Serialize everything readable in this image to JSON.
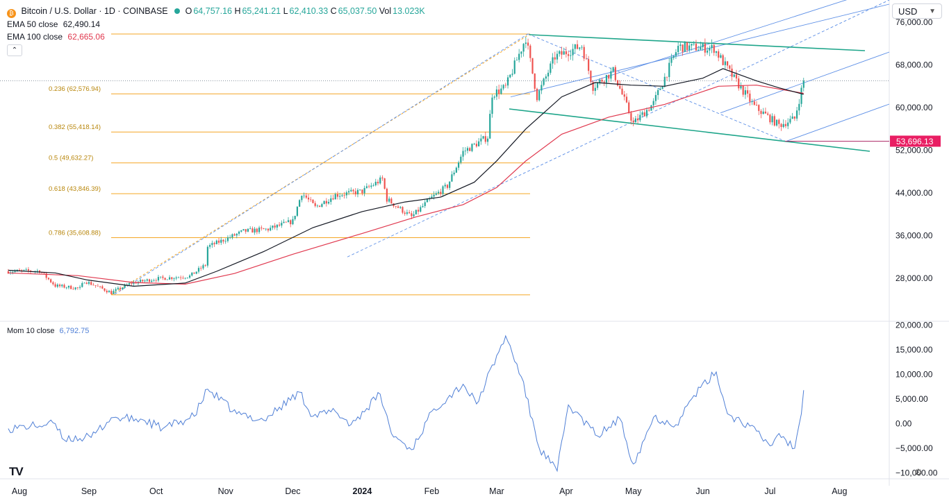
{
  "header": {
    "symbol": "Bitcoin / U.S. Dollar · 1D · COINBASE",
    "o_label": "O",
    "o_value": "64,757.16",
    "h_label": "H",
    "h_value": "65,241.21",
    "l_label": "L",
    "l_value": "62,410.33",
    "c_label": "C",
    "c_value": "65,037.50",
    "vol_label": "Vol",
    "vol_value": "13.023K",
    "coin_icon": "bitcoin-icon",
    "market_dot_color": "#26a69a"
  },
  "indicators": {
    "ema50_label": "EMA 50 close",
    "ema50_value": "62,490.14",
    "ema100_label": "EMA 100 close",
    "ema100_value": "62,665.06",
    "collapse_icon": "chevron-up-icon",
    "mom_label": "Mom 10 close",
    "mom_value": "6,792.75"
  },
  "currency": {
    "value": "USD",
    "icon": "chevron-down-icon"
  },
  "footer": {
    "logo": "TV",
    "settings_icon": "gear-icon"
  },
  "colors": {
    "up": "#26a69a",
    "down": "#ef5350",
    "ema50": "#131722",
    "ema100": "#e0384e",
    "fib": "#f5a623",
    "channel": "#1ea58a",
    "pitchfork": "#5b8ee6",
    "momentum": "#4f7fd6",
    "price_tag": "#e91e63"
  },
  "chart_data": [
    {
      "type": "candlestick",
      "title": "Bitcoin / U.S. Dollar · 1D · COINBASE",
      "x_axis": {
        "tick_labels": [
          "Aug",
          "Sep",
          "Oct",
          "Nov",
          "Dec",
          "2024",
          "Feb",
          "Mar",
          "Apr",
          "May",
          "Jun",
          "Jul",
          "Aug"
        ],
        "range": [
          "2023-07-27",
          "2024-08-16"
        ]
      },
      "y_axis": {
        "tick_labels": [
          "76,000.00",
          "68,000.00",
          "60,000.00",
          "52,000.00",
          "44,000.00",
          "36,000.00",
          "28,000.00"
        ],
        "ticks": [
          76000,
          68000,
          60000,
          52000,
          44000,
          36000,
          28000
        ],
        "range": [
          20300,
          78900
        ]
      },
      "current_price": 65037.5,
      "price_tag": "53,696.13",
      "price_tag_value": 53696.13,
      "fibonacci": {
        "levels": [
          {
            "ratio": "1",
            "price": 73790
          },
          {
            "ratio": "0.236",
            "price_label": "62,576.94",
            "price": 62576.94
          },
          {
            "ratio": "0.382",
            "price_label": "55,418.14",
            "price": 55418.14
          },
          {
            "ratio": "0.5",
            "price_label": "49,632.27",
            "price": 49632.27
          },
          {
            "ratio": "0.618",
            "price_label": "43,846.39",
            "price": 43846.39
          },
          {
            "ratio": "0.786",
            "price_label": "35,608.88",
            "price": 35608.88
          },
          {
            "ratio": "0",
            "price": 24900
          }
        ],
        "from_date": "2023-09-11",
        "to_date": "2024-03-14"
      },
      "channel": {
        "upper": [
          [
            "2024-03-14",
            73800
          ],
          [
            "2024-08-04",
            71000
          ]
        ],
        "lower": [
          [
            "2024-03-06",
            59800
          ],
          [
            "2024-08-04",
            51100
          ]
        ]
      },
      "pitchfork": {
        "anchor": [
          "2024-07-05",
          53696
        ],
        "lines": [
          [
            [
              "2023-09-11",
              24900
            ],
            [
              "2024-03-14",
              73800
            ]
          ],
          [
            [
              "2024-03-14",
              73800
            ],
            [
              "2024-07-05",
              53696
            ]
          ]
        ]
      },
      "ema50": [
        [
          "2023-07-27",
          29500
        ],
        [
          "2023-08-17",
          29000
        ],
        [
          "2023-08-31",
          27700
        ],
        [
          "2023-09-21",
          26500
        ],
        [
          "2023-10-14",
          27100
        ],
        [
          "2023-10-28",
          29300
        ],
        [
          "2023-11-18",
          33000
        ],
        [
          "2023-12-10",
          37500
        ],
        [
          "2024-01-01",
          40500
        ],
        [
          "2024-01-20",
          42300
        ],
        [
          "2024-02-05",
          43200
        ],
        [
          "2024-02-20",
          46000
        ],
        [
          "2024-03-01",
          50000
        ],
        [
          "2024-03-14",
          56000
        ],
        [
          "2024-03-30",
          62000
        ],
        [
          "2024-04-14",
          64700
        ],
        [
          "2024-04-30",
          64200
        ],
        [
          "2024-05-15",
          64000
        ],
        [
          "2024-06-01",
          65500
        ],
        [
          "2024-06-10",
          67300
        ],
        [
          "2024-06-25",
          65000
        ],
        [
          "2024-07-05",
          63700
        ],
        [
          "2024-07-16",
          62490
        ]
      ],
      "ema100": [
        [
          "2023-07-27",
          29000
        ],
        [
          "2023-08-27",
          28500
        ],
        [
          "2023-09-21",
          27200
        ],
        [
          "2023-10-14",
          26900
        ],
        [
          "2023-11-05",
          28900
        ],
        [
          "2023-12-01",
          32500
        ],
        [
          "2024-01-01",
          36400
        ],
        [
          "2024-01-25",
          39500
        ],
        [
          "2024-02-15",
          41800
        ],
        [
          "2024-03-01",
          45000
        ],
        [
          "2024-03-14",
          50000
        ],
        [
          "2024-03-30",
          55000
        ],
        [
          "2024-04-20",
          58200
        ],
        [
          "2024-05-15",
          60600
        ],
        [
          "2024-06-08",
          64000
        ],
        [
          "2024-06-25",
          64200
        ],
        [
          "2024-07-16",
          62665
        ]
      ],
      "close": [
        [
          "2023-07-27",
          29300
        ],
        [
          "2023-08-10",
          29400
        ],
        [
          "2023-08-17",
          26600
        ],
        [
          "2023-08-28",
          26100
        ],
        [
          "2023-08-30",
          27500
        ],
        [
          "2023-09-11",
          25300
        ],
        [
          "2023-09-20",
          27100
        ],
        [
          "2023-10-01",
          27900
        ],
        [
          "2023-10-16",
          28400
        ],
        [
          "2023-10-23",
          30500
        ],
        [
          "2023-10-24",
          33900
        ],
        [
          "2023-11-09",
          36800
        ],
        [
          "2023-11-20",
          37200
        ],
        [
          "2023-12-01",
          38700
        ],
        [
          "2023-12-05",
          44000
        ],
        [
          "2023-12-11",
          41300
        ],
        [
          "2023-12-20",
          43600
        ],
        [
          "2024-01-01",
          44300
        ],
        [
          "2024-01-10",
          46600
        ],
        [
          "2024-01-12",
          42800
        ],
        [
          "2024-01-23",
          39500
        ],
        [
          "2024-02-01",
          43100
        ],
        [
          "2024-02-08",
          45300
        ],
        [
          "2024-02-15",
          51700
        ],
        [
          "2024-02-26",
          54500
        ],
        [
          "2024-02-28",
          62500
        ],
        [
          "2024-03-05",
          63800
        ],
        [
          "2024-03-14",
          73100
        ],
        [
          "2024-03-19",
          62000
        ],
        [
          "2024-03-27",
          69500
        ],
        [
          "2024-04-08",
          71600
        ],
        [
          "2024-04-13",
          63900
        ],
        [
          "2024-04-22",
          66800
        ],
        [
          "2024-05-01",
          57000
        ],
        [
          "2024-05-10",
          60800
        ],
        [
          "2024-05-21",
          71400
        ],
        [
          "2024-06-06",
          71100
        ],
        [
          "2024-06-14",
          66000
        ],
        [
          "2024-06-24",
          60200
        ],
        [
          "2024-07-05",
          56700
        ],
        [
          "2024-07-12",
          57900
        ],
        [
          "2024-07-16",
          65037
        ]
      ]
    },
    {
      "type": "line",
      "name": "Mom 10 close",
      "y_axis": {
        "tick_labels": [
          "20,000.00",
          "15,000.00",
          "10,000.00",
          "5,000.00",
          "0.00",
          "−5,000.00",
          "−10,000.00"
        ],
        "ticks": [
          20000,
          15000,
          10000,
          5000,
          0,
          -5000,
          -10000
        ],
        "range": [
          -11000,
          21000
        ]
      },
      "x": [
        "2023-07-27",
        "2023-08-17",
        "2023-08-20",
        "2023-09-02",
        "2023-09-11",
        "2023-09-25",
        "2023-10-04",
        "2023-10-18",
        "2023-10-24",
        "2023-11-06",
        "2023-11-18",
        "2023-12-04",
        "2023-12-10",
        "2023-12-20",
        "2023-12-27",
        "2024-01-09",
        "2024-01-14",
        "2024-01-23",
        "2024-02-02",
        "2024-02-15",
        "2024-02-21",
        "2024-03-05",
        "2024-03-12",
        "2024-03-20",
        "2024-03-28",
        "2024-04-02",
        "2024-04-15",
        "2024-04-25",
        "2024-05-01",
        "2024-05-10",
        "2024-05-20",
        "2024-05-28",
        "2024-06-07",
        "2024-06-12",
        "2024-06-22",
        "2024-07-01",
        "2024-07-05",
        "2024-07-12",
        "2024-07-15",
        "2024-07-16"
      ],
      "values": [
        -1000,
        0,
        -3000,
        -2800,
        1200,
        800,
        -1000,
        1500,
        7000,
        2000,
        700,
        6400,
        1500,
        2500,
        -200,
        6000,
        -2000,
        -5300,
        3000,
        8000,
        4000,
        17800,
        9500,
        -5000,
        -9600,
        3800,
        -2500,
        1000,
        -8200,
        1300,
        -200,
        5700,
        10500,
        2000,
        -500,
        -4500,
        -2000,
        -5000,
        2000,
        6793
      ]
    }
  ]
}
